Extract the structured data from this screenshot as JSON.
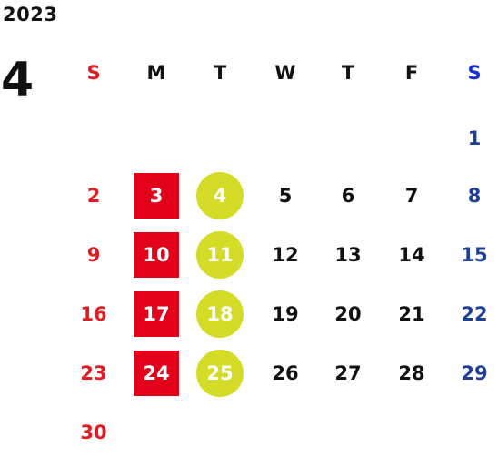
{
  "calendar": {
    "year": "2023",
    "month": "4",
    "weekdays": [
      "S",
      "M",
      "T",
      "W",
      "T",
      "F",
      "S"
    ],
    "weeks": [
      [
        "",
        "",
        "",
        "",
        "",
        "",
        "1"
      ],
      [
        "2",
        "3",
        "4",
        "5",
        "6",
        "7",
        "8"
      ],
      [
        "9",
        "10",
        "11",
        "12",
        "13",
        "14",
        "15"
      ],
      [
        "16",
        "17",
        "18",
        "19",
        "20",
        "21",
        "22"
      ],
      [
        "23",
        "24",
        "25",
        "26",
        "27",
        "28",
        "29"
      ],
      [
        "30",
        "",
        "",
        "",
        "",
        "",
        ""
      ]
    ],
    "highlights": {
      "monday_square_color": "#e3001b",
      "tuesday_circle_color": "#d4dc28"
    },
    "colors": {
      "sunday": "#e31b23",
      "saturday_header": "#1a2fcf",
      "saturday_dates": "#1f3f95",
      "weekday": "#111111"
    }
  }
}
